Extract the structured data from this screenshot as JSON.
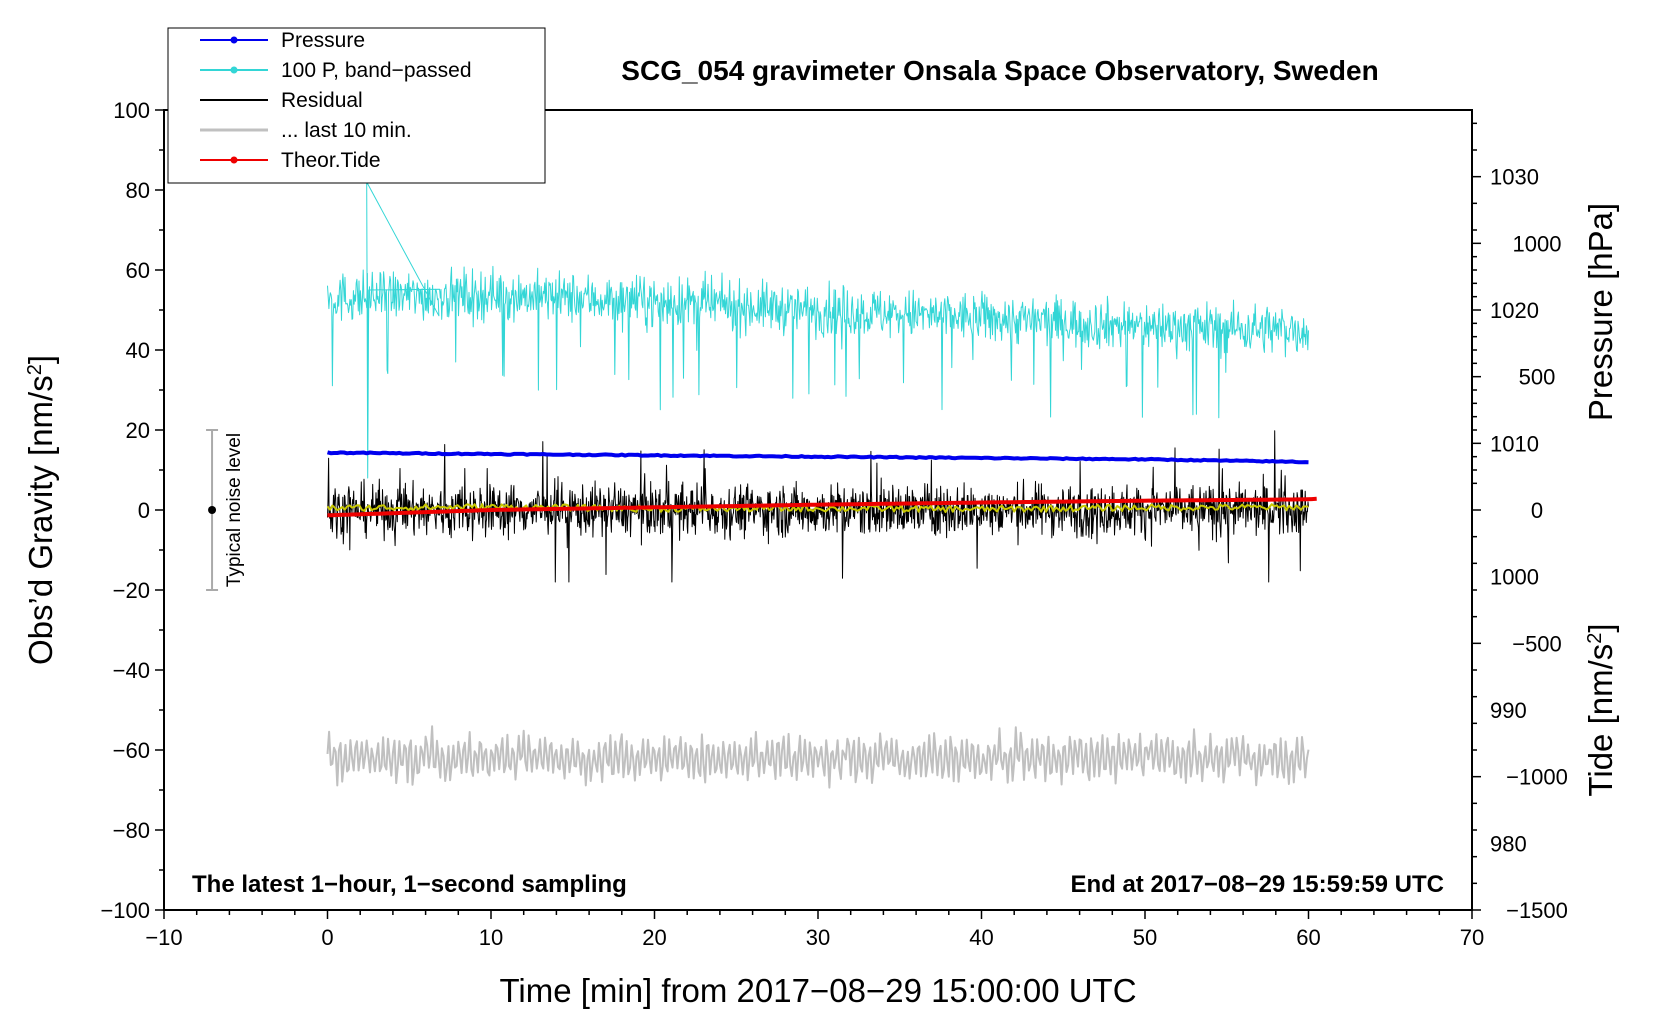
{
  "chart_data": {
    "type": "line",
    "title": "SCG_054 gravimeter Onsala Space Observatory, Sweden",
    "xlabel": "Time [min] from 2017−08−29 15:00:00 UTC",
    "ylabel_main": "Obs’d Gravity [nm/s",
    "ylabel_main_sup": "2",
    "ylabel_main_close": "]",
    "ylabel_pressure": "Pressure [hPa]",
    "ylabel_tide": "Tide [nm/s",
    "ylabel_tide_sup": "2",
    "ylabel_tide_close": "]",
    "xlim": [
      -10,
      70
    ],
    "ylim": [
      -100,
      100
    ],
    "pressure_range": [
      975,
      1035
    ],
    "tide_range": [
      -1500,
      1500
    ],
    "xticks": [
      "−10",
      "0",
      "10",
      "20",
      "30",
      "40",
      "50",
      "60",
      "70"
    ],
    "yticks_main": [
      "100",
      "80",
      "60",
      "40",
      "20",
      "0",
      "−20",
      "−40",
      "−60",
      "−80",
      "−100"
    ],
    "yticks_pressure": [
      "1030",
      "1020",
      "1010",
      "1000",
      "990",
      "980"
    ],
    "yticks_tide": [
      "1000",
      "500",
      "0",
      "−500",
      "−1000",
      "−1500"
    ],
    "noise_label": "Typical noise level",
    "noise_bar": {
      "x": -7,
      "center": 0,
      "low": -20,
      "high": 20
    },
    "bottom_left_note": "The latest 1−hour, 1−second sampling",
    "bottom_right_note": "End at 2017−08−29 15:59:59 UTC",
    "legend": [
      {
        "label": "Pressure",
        "color": "#0000ee",
        "marker": true
      },
      {
        "label": "100 P, band−passed",
        "color": "#33d6d6",
        "marker": true
      },
      {
        "label": "Residual",
        "color": "#000000",
        "marker": false
      },
      {
        "label": "... last 10 min.",
        "color": "#c0c0c0",
        "marker": false
      },
      {
        "label": "Theor.Tide",
        "color": "#ee0000",
        "marker": true
      }
    ],
    "series": [
      {
        "name": "Pressure",
        "axis": "pressure_hPa",
        "color": "#0000ee",
        "x": [
          0,
          10,
          20,
          30,
          40,
          50,
          60
        ],
        "values": [
          1009.3,
          1009.2,
          1009.1,
          1009.0,
          1008.9,
          1008.8,
          1008.6
        ]
      },
      {
        "name": "100 P, band−passed",
        "axis": "gravity_nm_s2",
        "color": "#33d6d6",
        "x": [
          0,
          10,
          20,
          30,
          40,
          50,
          60
        ],
        "values": [
          53,
          54,
          52,
          50,
          48,
          46,
          45
        ],
        "spread": 8
      },
      {
        "name": "Residual",
        "axis": "gravity_nm_s2",
        "color": "#000000",
        "x": [
          0,
          10,
          20,
          30,
          40,
          50,
          60
        ],
        "values": [
          0,
          0,
          0,
          0,
          0,
          0,
          0
        ],
        "spread": 7
      },
      {
        "name": "Residual smoothed",
        "axis": "gravity_nm_s2",
        "color": "#c8c800",
        "x": [
          0,
          10,
          20,
          30,
          40,
          50,
          60
        ],
        "values": [
          0.5,
          0.8,
          0.3,
          0.4,
          0.2,
          0.6,
          0.7
        ]
      },
      {
        "name": "... last 10 min.",
        "axis": "gravity_nm_s2",
        "color": "#c0c0c0",
        "x": [
          0,
          10,
          20,
          30,
          40,
          50,
          60
        ],
        "values": [
          -62,
          -62,
          -62,
          -62,
          -62,
          -62,
          -62
        ],
        "spread": 7
      },
      {
        "name": "Theor.Tide",
        "axis": "tide_nm_s2",
        "color": "#ee0000",
        "x": [
          0,
          10,
          20,
          30,
          40,
          50,
          60,
          60.5
        ],
        "values": [
          -20,
          0,
          10,
          20,
          28,
          35,
          40,
          42
        ]
      }
    ]
  }
}
